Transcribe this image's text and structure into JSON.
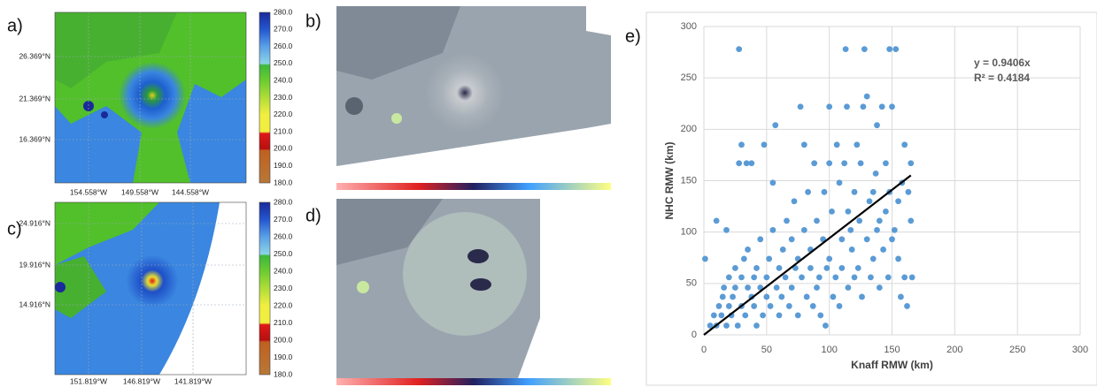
{
  "map_panels": [
    {
      "label": "a)",
      "lat_labels": [
        "26.369°N",
        "21.369°N",
        "16.369°N"
      ],
      "lon_labels": [
        "154.558°W",
        "149.558°W",
        "144.558°W"
      ],
      "colorbar_ticks": [
        "280.0",
        "270.0",
        "260.0",
        "250.0",
        "240.0",
        "230.0",
        "220.0",
        "210.0",
        "200.0",
        "190.0",
        "180.0"
      ]
    },
    {
      "label": "c)",
      "lat_labels": [
        "24.916°N",
        "19.916°N",
        "14.916°N"
      ],
      "lon_labels": [
        "151.819°W",
        "146.819°W",
        "141.819°W"
      ],
      "colorbar_ticks": [
        "280.0",
        "270.0",
        "260.0",
        "250.0",
        "240.0",
        "230.0",
        "220.0",
        "210.0",
        "200.0",
        "190.0",
        "180.0"
      ]
    }
  ],
  "image_panels": [
    {
      "label": "b)"
    },
    {
      "label": "d)"
    }
  ],
  "chart_data": {
    "type": "scatter",
    "panel_label": "e)",
    "x_label": "Knaff RMW (km)",
    "y_label": "NHC RMW (km)",
    "xlim": [
      0,
      300
    ],
    "ylim": [
      0,
      300
    ],
    "xticks": [
      0,
      50,
      100,
      150,
      200,
      250,
      300
    ],
    "yticks": [
      0,
      50,
      100,
      150,
      200,
      250,
      300
    ],
    "grid": true,
    "color": "#5b9bd5",
    "trendline": {
      "slope": 0.9406,
      "x_end": 165,
      "label": "y = 0.9406x",
      "r2_label": "R² = 0.4184",
      "color": "#000000"
    },
    "x": [
      1,
      5,
      8,
      10,
      10,
      12,
      14,
      15,
      16,
      18,
      18,
      20,
      20,
      22,
      23,
      25,
      25,
      27,
      28,
      28,
      30,
      30,
      30,
      32,
      33,
      34,
      35,
      35,
      38,
      38,
      40,
      40,
      42,
      42,
      45,
      45,
      47,
      48,
      50,
      50,
      52,
      53,
      55,
      55,
      57,
      58,
      60,
      60,
      62,
      63,
      65,
      66,
      68,
      70,
      70,
      72,
      73,
      75,
      75,
      77,
      78,
      80,
      80,
      82,
      83,
      85,
      85,
      87,
      88,
      90,
      90,
      92,
      93,
      95,
      96,
      97,
      98,
      100,
      100,
      100,
      102,
      103,
      105,
      106,
      108,
      108,
      110,
      110,
      112,
      113,
      114,
      115,
      115,
      117,
      118,
      120,
      120,
      122,
      123,
      124,
      125,
      126,
      127,
      128,
      130,
      130,
      132,
      133,
      135,
      135,
      137,
      138,
      138,
      140,
      140,
      142,
      143,
      145,
      145,
      147,
      148,
      148,
      150,
      150,
      152,
      153,
      155,
      155,
      157,
      158,
      160,
      160,
      162,
      163,
      165,
      165,
      166
    ],
    "y": [
      74,
      9,
      19,
      111,
      9,
      28,
      19,
      37,
      46,
      9,
      102,
      28,
      56,
      19,
      37,
      46,
      65,
      9,
      278,
      167,
      185,
      28,
      56,
      74,
      19,
      167,
      46,
      83,
      37,
      167,
      28,
      56,
      9,
      65,
      46,
      93,
      19,
      185,
      56,
      37,
      74,
      28,
      148,
      102,
      204,
      46,
      65,
      19,
      37,
      83,
      56,
      111,
      28,
      93,
      46,
      130,
      65,
      19,
      74,
      222,
      56,
      185,
      102,
      37,
      139,
      83,
      65,
      28,
      167,
      111,
      46,
      56,
      19,
      93,
      139,
      9,
      65,
      167,
      222,
      74,
      120,
      37,
      56,
      185,
      148,
      28,
      93,
      65,
      167,
      278,
      222,
      120,
      46,
      102,
      83,
      139,
      56,
      185,
      65,
      111,
      167,
      37,
      222,
      278,
      232,
      93,
      130,
      56,
      139,
      74,
      157,
      204,
      102,
      46,
      111,
      222,
      83,
      167,
      120,
      56,
      278,
      139,
      222,
      93,
      102,
      278,
      74,
      130,
      37,
      148,
      185,
      56,
      28,
      139,
      167,
      111,
      56
    ]
  }
}
